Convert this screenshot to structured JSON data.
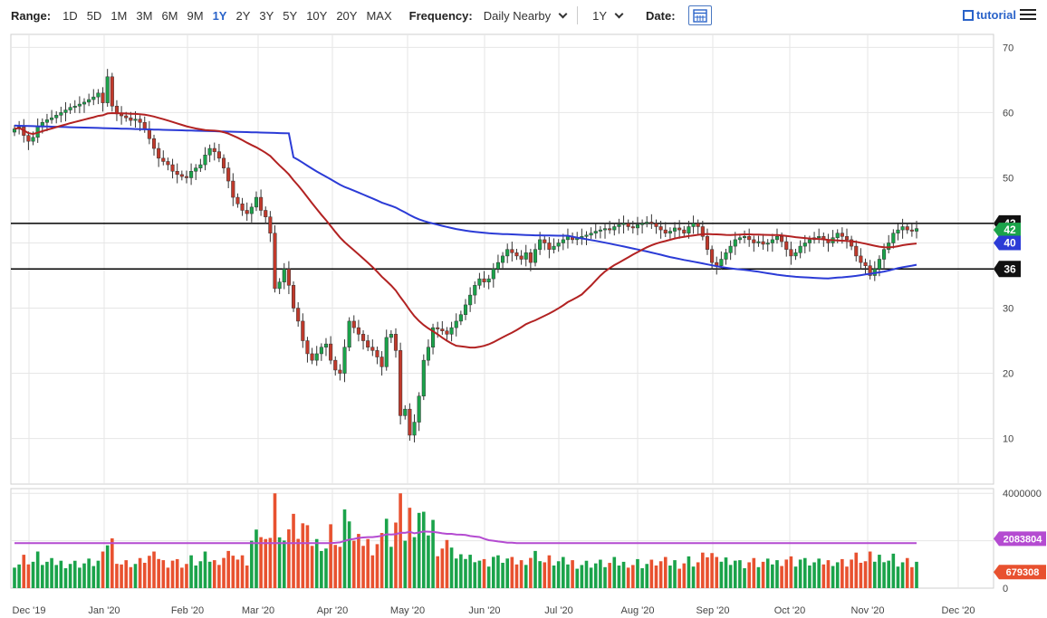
{
  "toolbar": {
    "range_label": "Range:",
    "ranges": [
      "1D",
      "5D",
      "1M",
      "3M",
      "6M",
      "9M",
      "1Y",
      "2Y",
      "3Y",
      "5Y",
      "10Y",
      "20Y",
      "MAX"
    ],
    "active_range": "1Y",
    "frequency_label": "Frequency:",
    "frequency_value": "Daily Nearby",
    "period_value": "1Y",
    "date_label": "Date:",
    "tutorial_label": "tutorial",
    "accent_color": "#2a63c9"
  },
  "chart_data": {
    "type": "candlestick",
    "price_axis": {
      "ticks": [
        10,
        20,
        30,
        40,
        50,
        60,
        70
      ],
      "min": 3,
      "max": 72
    },
    "volume_axis": {
      "ticks": [
        "0",
        "2000000",
        "4000000"
      ],
      "max": 4200000
    },
    "x_ticks": [
      "Dec '19",
      "Jan '20",
      "Feb '20",
      "Mar '20",
      "Apr '20",
      "May '20",
      "Jun '20",
      "Jul '20",
      "Aug '20",
      "Sep '20",
      "Oct '20",
      "Nov '20",
      "Dec '20"
    ],
    "horizontal_lines": [
      {
        "value": 43,
        "label": "43"
      },
      {
        "value": 36,
        "label": "36"
      }
    ],
    "price_badges": [
      {
        "value": 42,
        "label": "42",
        "color": "#1aa34a"
      },
      {
        "value": 40,
        "label": "40",
        "color": "#2b3bd6"
      }
    ],
    "volume_badges": [
      {
        "value": 2083804,
        "label": "2083804",
        "color": "#b44bd1"
      },
      {
        "value": 679308,
        "label": "679308",
        "color": "#e8512f"
      }
    ],
    "closes": [
      57.5,
      57.8,
      56.5,
      55.6,
      56.2,
      57.9,
      58.5,
      58.9,
      59.2,
      59.6,
      60.0,
      60.4,
      60.8,
      61.0,
      61.3,
      61.6,
      62.0,
      62.4,
      63.0,
      61.5,
      65.5,
      61.0,
      59.8,
      59.5,
      59.2,
      58.8,
      59.0,
      58.5,
      57.5,
      56.0,
      54.5,
      53.0,
      52.5,
      52.0,
      51.0,
      50.5,
      50.2,
      50.0,
      51.0,
      51.5,
      52.0,
      53.5,
      54.5,
      54.0,
      53.0,
      51.5,
      49.5,
      47.0,
      46.0,
      45.0,
      44.5,
      45.5,
      47.0,
      45.0,
      44.0,
      41.5,
      33.0,
      34.0,
      36.0,
      33.5,
      30.0,
      28.0,
      25.0,
      23.0,
      22.0,
      23.0,
      24.0,
      24.5,
      22.0,
      20.5,
      20.0,
      24.0,
      28.0,
      27.0,
      26.0,
      25.0,
      24.0,
      23.5,
      22.5,
      21.0,
      25.5,
      26.0,
      23.5,
      13.5,
      14.5,
      10.5,
      12.5,
      16.5,
      22.0,
      24.0,
      27.0,
      26.8,
      26.5,
      26.0,
      27.0,
      28.0,
      29.0,
      30.5,
      32.0,
      33.5,
      34.5,
      34.0,
      34.5,
      36.0,
      37.0,
      38.0,
      39.0,
      38.5,
      38.0,
      37.5,
      38.5,
      37.0,
      39.0,
      40.5,
      40.0,
      39.0,
      39.5,
      40.0,
      40.5,
      41.0,
      40.5,
      40.8,
      41.0,
      41.2,
      41.5,
      41.8,
      42.0,
      42.2,
      42.0,
      42.5,
      42.8,
      43.0,
      42.5,
      42.3,
      42.8,
      43.0,
      43.2,
      43.0,
      42.5,
      42.0,
      41.5,
      41.8,
      42.3,
      42.0,
      41.5,
      42.5,
      43.0,
      42.5,
      41.0,
      39.0,
      37.0,
      36.5,
      37.5,
      38.5,
      39.5,
      40.5,
      40.8,
      41.0,
      40.5,
      40.0,
      40.2,
      39.8,
      40.0,
      40.5,
      41.0,
      40.2,
      39.0,
      38.0,
      38.5,
      39.5,
      40.0,
      40.5,
      40.8,
      41.0,
      40.5,
      40.0,
      40.8,
      41.5,
      41.0,
      40.5,
      39.5,
      38.0,
      37.0,
      36.5,
      35.0,
      36.0,
      37.5,
      39.0,
      40.0,
      41.5,
      42.0,
      42.5,
      42.0,
      41.8,
      42.2
    ]
  }
}
